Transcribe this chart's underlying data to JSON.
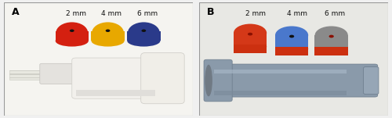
{
  "fig_width": 5.0,
  "fig_height": 1.51,
  "dpi": 100,
  "outer_bg": "#f0f0f0",
  "panel_A_bg": "#c8c4bc",
  "panel_B_bg": "#d4d2ce",
  "border_color": "#999999",
  "label_fontsize": 9,
  "label_fontweight": "bold",
  "ann_fontsize": 6.5,
  "ann_texts": [
    "2 mm",
    "4 mm",
    "6 mm"
  ],
  "panel_A_label": "A",
  "panel_B_label": "B",
  "cap_A_colors": [
    "#d42010",
    "#e8a800",
    "#2a3a8a"
  ],
  "cap_A_hole_colors": [
    "#111111",
    "#111111",
    "#111111"
  ],
  "cap_B_colors": [
    "#d43818",
    "#4a78cc",
    "#8a8a8a"
  ],
  "cap_B_hole_colors": [
    "#8a1000",
    "#111111",
    "#8a1000"
  ],
  "device_A_body": "#f0eeea",
  "device_A_edge": "#cccccc",
  "device_B_body": "#8a9aaa",
  "device_B_edge": "#6a7a8a",
  "white_bg": "#f5f4f0",
  "light_bg": "#e8e6e0"
}
